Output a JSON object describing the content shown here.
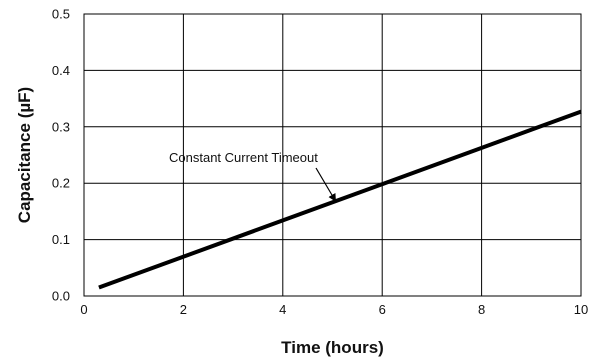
{
  "chart_data": {
    "type": "line",
    "title": "",
    "xlabel": "Time (hours)",
    "ylabel": "Capacitance (µF)",
    "xlim": [
      0,
      10
    ],
    "ylim": [
      0,
      0.5
    ],
    "x_ticks": [
      0,
      2,
      4,
      6,
      8,
      10
    ],
    "y_ticks": [
      0.0,
      0.1,
      0.2,
      0.3,
      0.4,
      0.5
    ],
    "x_tick_labels": [
      "0",
      "2",
      "4",
      "6",
      "8",
      "10"
    ],
    "y_tick_labels": [
      "0.0",
      "0.1",
      "0.2",
      "0.3",
      "0.4",
      "0.5"
    ],
    "grid": true,
    "series": [
      {
        "x": [
          0.3,
          10
        ],
        "y": [
          0.015,
          0.327
        ]
      }
    ],
    "annotations": [
      {
        "text": "Constant Current Timeout",
        "points_to": {
          "x": 5.05,
          "y": 0.17
        }
      }
    ],
    "colors": {
      "line": "#000000",
      "grid": "#000000",
      "background": "#ffffff"
    }
  }
}
